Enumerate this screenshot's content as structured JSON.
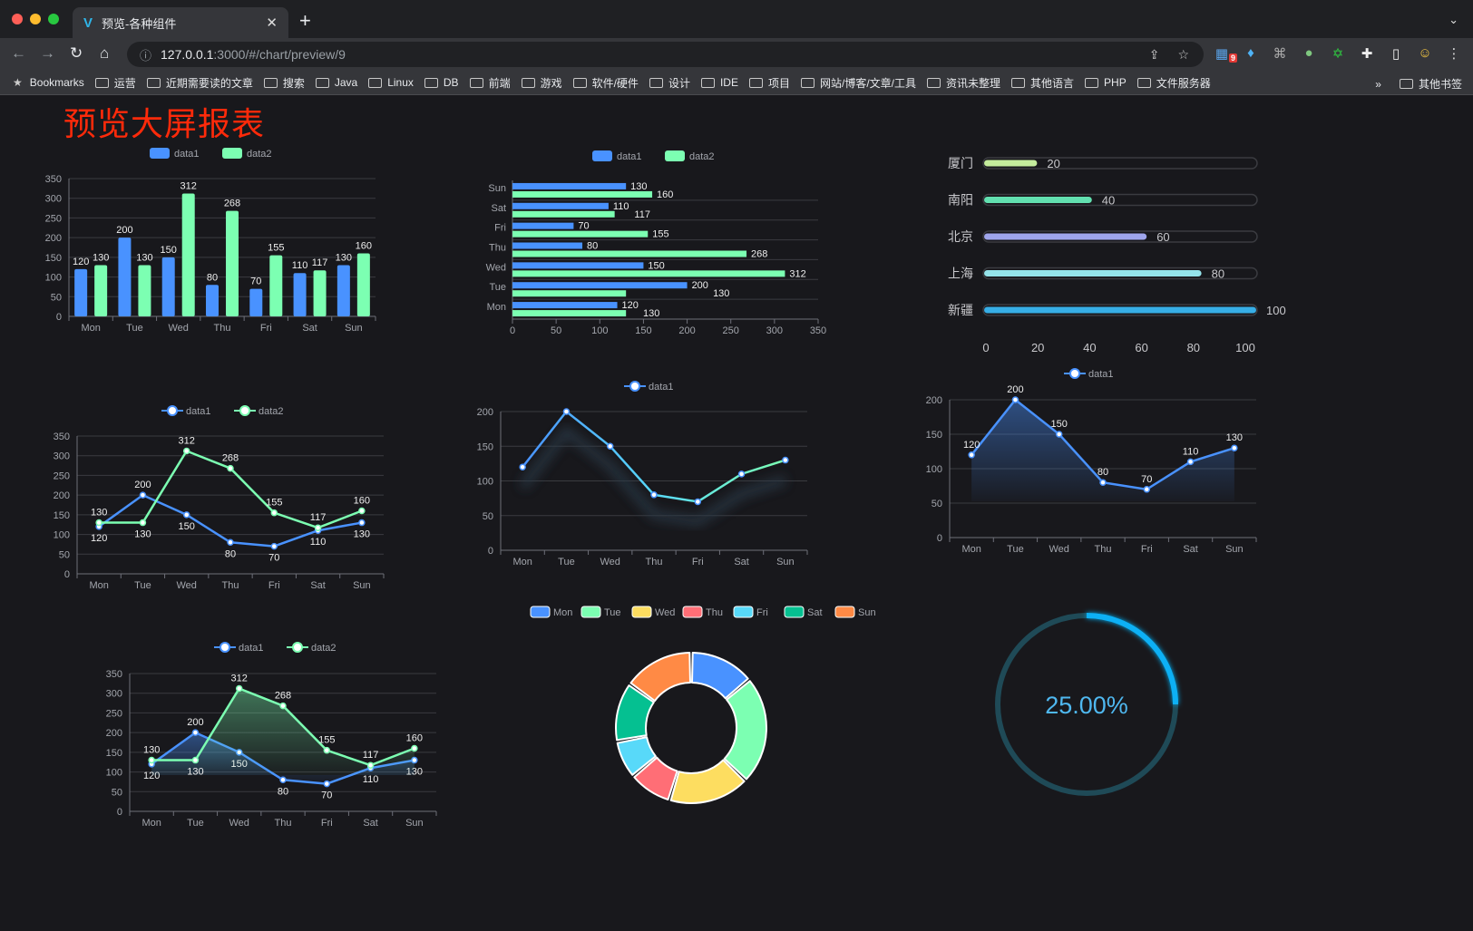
{
  "browser": {
    "tab_title": "预览-各种组件",
    "url_host": "127.0.0.1",
    "url_path": ":3000/#/chart/preview/9",
    "extension_badge": "9",
    "bookmarks": [
      "运营",
      "近期需要读的文章",
      "搜索",
      "Java",
      "Linux",
      "DB",
      "前端",
      "游戏",
      "软件/硬件",
      "设计",
      "IDE",
      "项目",
      "网站/博客/文章/工具",
      "资讯未整理",
      "其他语言",
      "PHP",
      "文件服务器"
    ],
    "bookmarks_label": "Bookmarks",
    "overflow": "»",
    "other_bookmarks": "其他书签"
  },
  "page": {
    "title": "预览大屏报表",
    "title_color": "#ff2a0a"
  },
  "colors": {
    "data1": "#4992ff",
    "data2": "#7cffb2",
    "background": "#18181c"
  },
  "chart_data": [
    {
      "type": "bar",
      "categories": [
        "Mon",
        "Tue",
        "Wed",
        "Thu",
        "Fri",
        "Sat",
        "Sun"
      ],
      "ylim": [
        0,
        350
      ],
      "y_ticks": [
        0,
        50,
        100,
        150,
        200,
        250,
        300,
        350
      ],
      "legend": "top-center",
      "grid": true,
      "series": [
        {
          "name": "data1",
          "values": [
            120,
            200,
            150,
            80,
            70,
            110,
            130
          ]
        },
        {
          "name": "data2",
          "values": [
            130,
            130,
            312,
            268,
            155,
            117,
            160
          ]
        }
      ]
    },
    {
      "type": "bar",
      "orientation": "horizontal",
      "categories": [
        "Mon",
        "Tue",
        "Wed",
        "Thu",
        "Fri",
        "Sat",
        "Sun"
      ],
      "xlim": [
        0,
        350
      ],
      "x_ticks": [
        0,
        50,
        100,
        150,
        200,
        250,
        300,
        350
      ],
      "legend": "top-center",
      "grid": true,
      "series": [
        {
          "name": "data1",
          "values": [
            120,
            200,
            150,
            80,
            70,
            110,
            130
          ]
        },
        {
          "name": "data2",
          "values": [
            130,
            130,
            312,
            268,
            155,
            117,
            160
          ]
        }
      ]
    },
    {
      "type": "bar",
      "orientation": "horizontal",
      "style": "progress",
      "categories": [
        "厦门",
        "南阳",
        "北京",
        "上海",
        "新疆"
      ],
      "values": [
        20,
        40,
        60,
        80,
        100
      ],
      "xlim": [
        0,
        100
      ],
      "x_ticks": [
        0,
        20,
        40,
        60,
        80,
        100
      ],
      "colors": [
        "#c4ec9c",
        "#62e0b0",
        "#9fa5ec",
        "#94e3ea",
        "#37aee6"
      ]
    },
    {
      "type": "line",
      "categories": [
        "Mon",
        "Tue",
        "Wed",
        "Thu",
        "Fri",
        "Sat",
        "Sun"
      ],
      "ylim": [
        0,
        350
      ],
      "y_ticks": [
        0,
        50,
        100,
        150,
        200,
        250,
        300,
        350
      ],
      "legend": "top-center",
      "grid": true,
      "series": [
        {
          "name": "data1",
          "values": [
            120,
            200,
            150,
            80,
            70,
            110,
            130
          ]
        },
        {
          "name": "data2",
          "values": [
            130,
            130,
            312,
            268,
            155,
            117,
            160
          ]
        }
      ]
    },
    {
      "type": "line",
      "categories": [
        "Mon",
        "Tue",
        "Wed",
        "Thu",
        "Fri",
        "Sat",
        "Sun"
      ],
      "ylim": [
        0,
        200
      ],
      "y_ticks": [
        0,
        50,
        100,
        150,
        200
      ],
      "legend": "top-center",
      "grid": true,
      "series": [
        {
          "name": "data1",
          "values": [
            120,
            200,
            150,
            80,
            70,
            110,
            130
          ]
        }
      ]
    },
    {
      "type": "area",
      "categories": [
        "Mon",
        "Tue",
        "Wed",
        "Thu",
        "Fri",
        "Sat",
        "Sun"
      ],
      "ylim": [
        0,
        200
      ],
      "y_ticks": [
        0,
        50,
        100,
        150,
        200
      ],
      "legend": "top-center",
      "grid": true,
      "series": [
        {
          "name": "data1",
          "values": [
            120,
            200,
            150,
            80,
            70,
            110,
            130
          ]
        }
      ]
    },
    {
      "type": "area",
      "categories": [
        "Mon",
        "Tue",
        "Wed",
        "Thu",
        "Fri",
        "Sat",
        "Sun"
      ],
      "ylim": [
        0,
        350
      ],
      "y_ticks": [
        0,
        50,
        100,
        150,
        200,
        250,
        300,
        350
      ],
      "legend": "top-center",
      "grid": true,
      "series": [
        {
          "name": "data1",
          "values": [
            120,
            200,
            150,
            80,
            70,
            110,
            130
          ]
        },
        {
          "name": "data2",
          "values": [
            130,
            130,
            312,
            268,
            155,
            117,
            160
          ]
        }
      ]
    },
    {
      "type": "pie",
      "style": "donut",
      "categories": [
        "Mon",
        "Tue",
        "Wed",
        "Thu",
        "Fri",
        "Sat",
        "Sun"
      ],
      "values": [
        120,
        200,
        150,
        80,
        70,
        110,
        130
      ],
      "legend": "top-center",
      "colors": [
        "#4992ff",
        "#7cffb2",
        "#fddd60",
        "#ff6e76",
        "#58d9f9",
        "#05c091",
        "#ff8a45"
      ]
    },
    {
      "type": "gauge",
      "style": "progress-ring",
      "value": 0.25,
      "label": "25.00%",
      "color": "#0bb0f5"
    }
  ]
}
